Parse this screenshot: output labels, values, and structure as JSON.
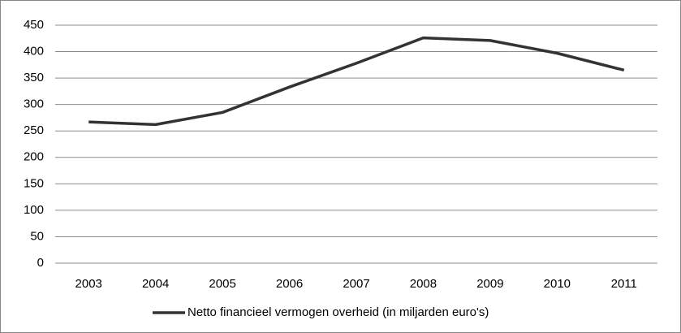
{
  "chart_data": {
    "type": "line",
    "categories": [
      "2003",
      "2004",
      "2005",
      "2006",
      "2007",
      "2008",
      "2009",
      "2010",
      "2011"
    ],
    "series": [
      {
        "name": "Netto financieel vermogen overheid (in miljarden euro's)",
        "color": "#333333",
        "values": [
          267,
          262,
          285,
          333,
          378,
          426,
          421,
          397,
          365
        ]
      }
    ],
    "ylim": [
      0,
      450
    ],
    "yticks": [
      0,
      50,
      100,
      150,
      200,
      250,
      300,
      350,
      400,
      450
    ],
    "grid": true,
    "legend": "bottom"
  }
}
